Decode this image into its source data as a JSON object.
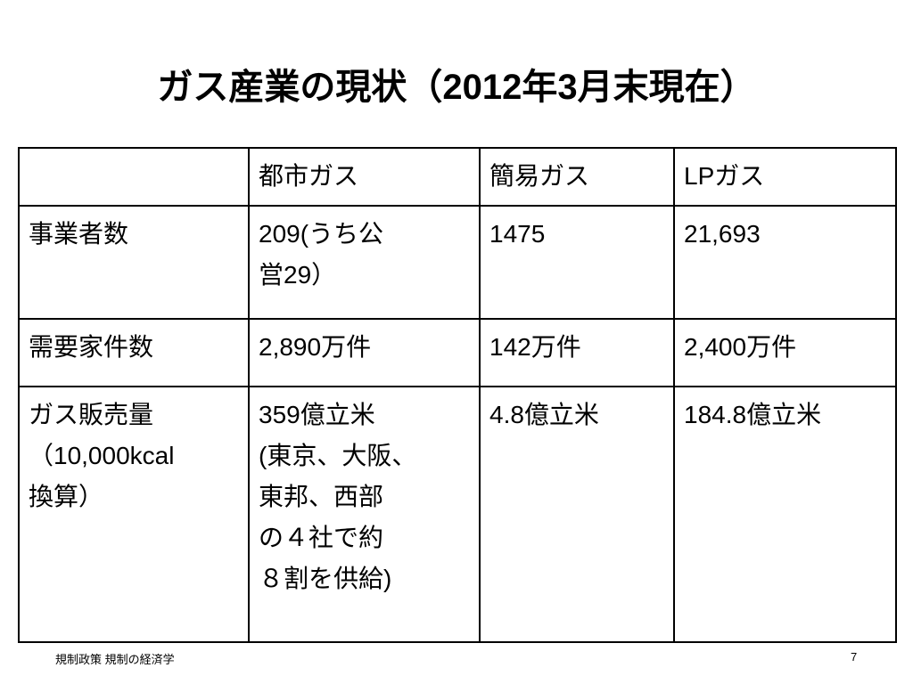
{
  "title": "ガス産業の現状（2012年3月末現在）",
  "table": {
    "header": [
      "都市ガス",
      "簡易ガス",
      "LPガス"
    ],
    "rows": [
      [
        [
          "事業者数"
        ],
        [
          "209(うち公",
          "営29）"
        ],
        [
          "1475"
        ],
        [
          "21,693"
        ]
      ],
      [
        [
          "需要家件数"
        ],
        [
          "2,890万件"
        ],
        [
          "142万件"
        ],
        [
          "2,400万件"
        ]
      ],
      [
        [
          "ガス販売量",
          "（10,000kcal",
          "換算）"
        ],
        [
          "359億立米",
          "(東京、大阪、",
          "東邦、西部",
          "の４社で約",
          "８割を供給)"
        ],
        [
          "4.8億立米"
        ],
        [
          "184.8億立米"
        ]
      ]
    ]
  },
  "footer": {
    "text": "規制政策 規制の経済学",
    "page": "7"
  }
}
